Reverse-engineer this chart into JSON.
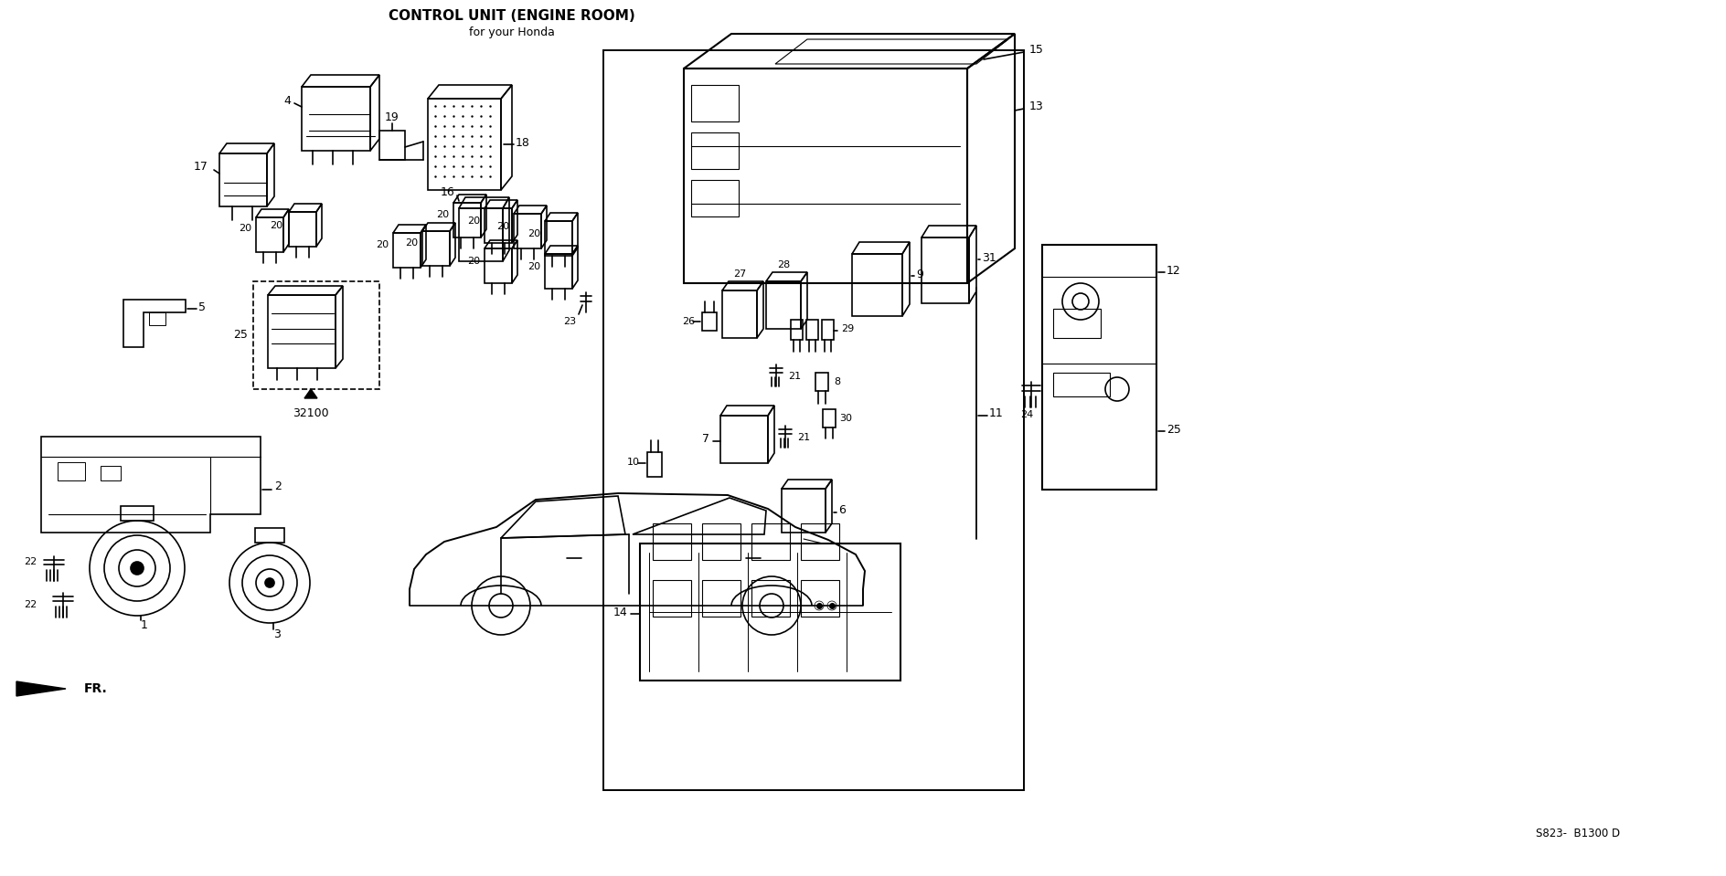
{
  "title": "CONTROL UNIT (ENGINE ROOM)",
  "subtitle": "for your Honda",
  "background_color": "#ffffff",
  "line_color": "#000000",
  "part_number_ref": "S823-  B1300 D",
  "fig_width": 18.88,
  "fig_height": 9.59,
  "dpi": 100
}
